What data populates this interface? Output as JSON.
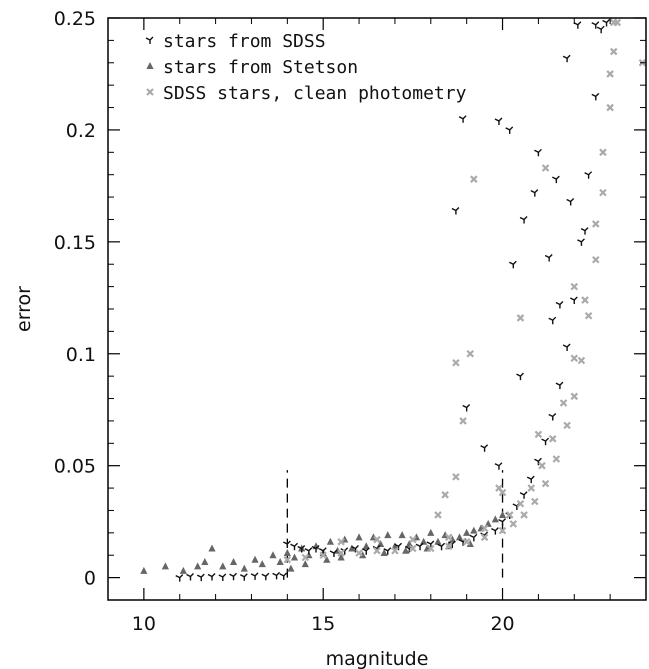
{
  "chart_data": {
    "type": "scatter",
    "xlabel": "magnitude",
    "ylabel": "error",
    "xlim": [
      9,
      24
    ],
    "ylim": [
      -0.01,
      0.25
    ],
    "xticks": [
      10,
      15,
      20
    ],
    "yticks": [
      0,
      0.05,
      0.1,
      0.15,
      0.2,
      0.25
    ],
    "ytick_labels": [
      "0",
      "0.05",
      "0.1",
      "0.15",
      "0.2",
      "0.25"
    ],
    "grid": false,
    "legend_position": "top-left",
    "reference_lines": [
      {
        "x": 14,
        "y_range": [
          0,
          0.048
        ],
        "style": "dashed"
      },
      {
        "x": 20,
        "y_range": [
          0,
          0.048
        ],
        "style": "dashed"
      }
    ],
    "series": [
      {
        "name": "stars from SDSS",
        "marker": "tri",
        "color": "#111111",
        "points": [
          [
            11.0,
            0.0
          ],
          [
            11.3,
            0.0005
          ],
          [
            11.6,
            0.0002
          ],
          [
            11.9,
            0.0005
          ],
          [
            12.2,
            0.0003
          ],
          [
            12.5,
            0.0006
          ],
          [
            12.8,
            0.0004
          ],
          [
            13.1,
            0.0008
          ],
          [
            13.4,
            0.0006
          ],
          [
            13.7,
            0.001
          ],
          [
            13.9,
            0.0008
          ],
          [
            14.0,
            0.015
          ],
          [
            14.2,
            0.014
          ],
          [
            14.4,
            0.013
          ],
          [
            14.6,
            0.012
          ],
          [
            14.8,
            0.013
          ],
          [
            15.0,
            0.012
          ],
          [
            15.3,
            0.011
          ],
          [
            15.6,
            0.012
          ],
          [
            15.9,
            0.013
          ],
          [
            16.2,
            0.012
          ],
          [
            16.5,
            0.013
          ],
          [
            16.8,
            0.012
          ],
          [
            17.1,
            0.014
          ],
          [
            17.4,
            0.013
          ],
          [
            17.7,
            0.014
          ],
          [
            18.0,
            0.015
          ],
          [
            18.3,
            0.014
          ],
          [
            18.6,
            0.015
          ],
          [
            18.9,
            0.016
          ],
          [
            19.2,
            0.018
          ],
          [
            19.5,
            0.019
          ],
          [
            19.8,
            0.021
          ],
          [
            20.0,
            0.025
          ],
          [
            20.2,
            0.028
          ],
          [
            20.4,
            0.032
          ],
          [
            20.6,
            0.037
          ],
          [
            20.8,
            0.044
          ],
          [
            21.0,
            0.052
          ],
          [
            21.2,
            0.061
          ],
          [
            21.4,
            0.072
          ],
          [
            21.6,
            0.086
          ],
          [
            21.8,
            0.103
          ],
          [
            22.0,
            0.124
          ],
          [
            22.2,
            0.15
          ],
          [
            22.4,
            0.18
          ],
          [
            22.6,
            0.215
          ],
          [
            22.75,
            0.245
          ],
          [
            18.7,
            0.164
          ],
          [
            18.9,
            0.205
          ],
          [
            19.9,
            0.204
          ],
          [
            20.2,
            0.2
          ],
          [
            21.0,
            0.19
          ],
          [
            21.8,
            0.232
          ],
          [
            22.1,
            0.247
          ],
          [
            20.6,
            0.16
          ],
          [
            20.9,
            0.172
          ],
          [
            21.3,
            0.143
          ],
          [
            21.6,
            0.122
          ],
          [
            20.3,
            0.14
          ],
          [
            21.4,
            0.115
          ],
          [
            19.0,
            0.076
          ],
          [
            19.5,
            0.058
          ],
          [
            19.9,
            0.05
          ],
          [
            20.5,
            0.09
          ],
          [
            21.9,
            0.168
          ],
          [
            22.3,
            0.155
          ],
          [
            21.5,
            0.178
          ],
          [
            22.6,
            0.247
          ],
          [
            22.9,
            0.248
          ]
        ]
      },
      {
        "name": "stars from Stetson",
        "marker": "triangle",
        "color": "#666666",
        "points": [
          [
            10.0,
            0.003
          ],
          [
            10.6,
            0.005
          ],
          [
            11.1,
            0.003
          ],
          [
            11.5,
            0.005
          ],
          [
            11.7,
            0.007
          ],
          [
            11.9,
            0.013
          ],
          [
            12.2,
            0.005
          ],
          [
            12.5,
            0.007
          ],
          [
            12.8,
            0.004
          ],
          [
            13.1,
            0.008
          ],
          [
            13.3,
            0.006
          ],
          [
            13.6,
            0.01
          ],
          [
            13.8,
            0.007
          ],
          [
            14.0,
            0.011
          ],
          [
            14.2,
            0.009
          ],
          [
            14.4,
            0.013
          ],
          [
            14.6,
            0.01
          ],
          [
            14.8,
            0.014
          ],
          [
            15.0,
            0.011
          ],
          [
            15.2,
            0.016
          ],
          [
            15.4,
            0.012
          ],
          [
            15.6,
            0.017
          ],
          [
            15.8,
            0.013
          ],
          [
            16.0,
            0.018
          ],
          [
            16.2,
            0.014
          ],
          [
            16.4,
            0.018
          ],
          [
            16.6,
            0.015
          ],
          [
            16.8,
            0.019
          ],
          [
            17.0,
            0.014
          ],
          [
            17.2,
            0.019
          ],
          [
            17.4,
            0.015
          ],
          [
            17.6,
            0.018
          ],
          [
            17.8,
            0.016
          ],
          [
            18.0,
            0.02
          ],
          [
            18.2,
            0.016
          ],
          [
            18.4,
            0.019
          ],
          [
            18.6,
            0.017
          ],
          [
            18.8,
            0.018
          ],
          [
            19.0,
            0.02
          ],
          [
            19.2,
            0.021
          ],
          [
            19.4,
            0.022
          ],
          [
            19.6,
            0.024
          ],
          [
            19.8,
            0.026
          ],
          [
            20.0,
            0.028
          ],
          [
            14.1,
            0.004
          ],
          [
            14.5,
            0.006
          ],
          [
            15.1,
            0.008
          ],
          [
            15.5,
            0.009
          ],
          [
            16.1,
            0.01
          ],
          [
            16.7,
            0.011
          ],
          [
            17.3,
            0.012
          ],
          [
            17.9,
            0.013
          ],
          [
            18.5,
            0.014
          ],
          [
            19.1,
            0.015
          ]
        ]
      },
      {
        "name": "SDSS stars, clean photometry",
        "marker": "x",
        "color": "#aaaaaa",
        "points": [
          [
            14.0,
            0.008
          ],
          [
            14.5,
            0.009
          ],
          [
            15.0,
            0.01
          ],
          [
            15.5,
            0.011
          ],
          [
            16.0,
            0.011
          ],
          [
            16.5,
            0.012
          ],
          [
            17.0,
            0.012
          ],
          [
            17.5,
            0.013
          ],
          [
            18.0,
            0.013
          ],
          [
            18.5,
            0.014
          ],
          [
            19.0,
            0.016
          ],
          [
            19.5,
            0.018
          ],
          [
            20.0,
            0.021
          ],
          [
            20.3,
            0.024
          ],
          [
            20.6,
            0.028
          ],
          [
            20.9,
            0.034
          ],
          [
            21.2,
            0.042
          ],
          [
            21.5,
            0.053
          ],
          [
            21.8,
            0.068
          ],
          [
            22.0,
            0.081
          ],
          [
            22.2,
            0.097
          ],
          [
            22.4,
            0.117
          ],
          [
            22.6,
            0.142
          ],
          [
            22.8,
            0.172
          ],
          [
            23.0,
            0.21
          ],
          [
            23.1,
            0.235
          ],
          [
            23.2,
            0.248
          ],
          [
            15.5,
            0.016
          ],
          [
            16.5,
            0.017
          ],
          [
            17.5,
            0.017
          ],
          [
            18.5,
            0.018
          ],
          [
            19.5,
            0.022
          ],
          [
            20.2,
            0.028
          ],
          [
            20.5,
            0.033
          ],
          [
            20.8,
            0.04
          ],
          [
            21.1,
            0.05
          ],
          [
            21.4,
            0.062
          ],
          [
            21.7,
            0.078
          ],
          [
            22.0,
            0.098
          ],
          [
            22.3,
            0.124
          ],
          [
            22.6,
            0.158
          ],
          [
            22.8,
            0.19
          ],
          [
            23.0,
            0.225
          ],
          [
            23.1,
            0.248
          ],
          [
            18.2,
            0.028
          ],
          [
            18.4,
            0.037
          ],
          [
            18.7,
            0.045
          ],
          [
            18.7,
            0.096
          ],
          [
            19.1,
            0.1
          ],
          [
            18.9,
            0.07
          ],
          [
            19.2,
            0.178
          ],
          [
            20.5,
            0.116
          ],
          [
            21.2,
            0.183
          ],
          [
            22.0,
            0.13
          ],
          [
            19.9,
            0.04
          ],
          [
            20.0,
            0.038
          ],
          [
            23.9,
            0.23
          ],
          [
            21.0,
            0.064
          ]
        ]
      }
    ]
  }
}
